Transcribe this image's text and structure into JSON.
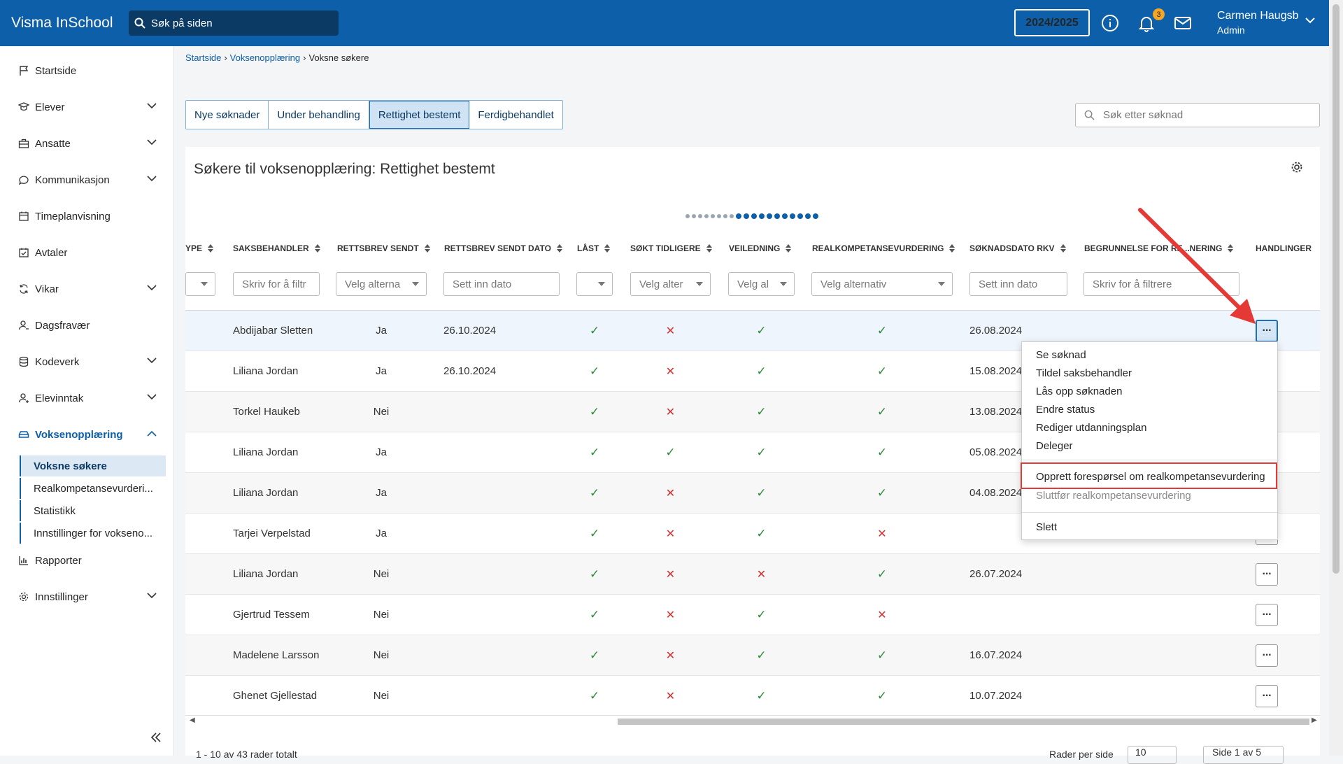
{
  "topbar": {
    "brand": "Visma InSchool",
    "search_placeholder": "Søk på siden",
    "year": "2024/2025",
    "notification_count": "3",
    "user_name": "Carmen Haugsb",
    "user_role": "Admin",
    "icons": [
      "info-icon",
      "bell-icon",
      "mail-icon"
    ]
  },
  "sidebar": {
    "items": [
      {
        "label": "Startside",
        "icon": "flag-icon"
      },
      {
        "label": "Elever",
        "icon": "student-icon"
      },
      {
        "label": "Ansatte",
        "icon": "briefcase-icon"
      },
      {
        "label": "Kommunikasjon",
        "icon": "chat-icon"
      },
      {
        "label": "Timeplanvisning",
        "icon": "calendar-icon"
      },
      {
        "label": "Avtaler",
        "icon": "calendar-check-icon"
      },
      {
        "label": "Vikar",
        "icon": "swap-icon"
      },
      {
        "label": "Dagsfravær",
        "icon": "user-absent-icon"
      },
      {
        "label": "Kodeverk",
        "icon": "database-icon"
      },
      {
        "label": "Elevinntak",
        "icon": "user-plus-icon"
      },
      {
        "label": "Voksenopplæring",
        "icon": "car-icon"
      },
      {
        "label": "Rapporter",
        "icon": "chart-icon"
      },
      {
        "label": "Innstillinger",
        "icon": "gear-icon"
      }
    ],
    "subitems": [
      "Voksne søkere",
      "Realkompetansevurderi...",
      "Statistikk",
      "Innstillinger for vokseno..."
    ]
  },
  "breadcrumb": {
    "items": [
      "Startside",
      "Voksenopplæring"
    ],
    "current": "Voksne søkere"
  },
  "tabs": [
    "Nye søknader",
    "Under behandling",
    "Rettighet bestemt",
    "Ferdigbehandlet"
  ],
  "search_placeholder": "Søk etter søknad",
  "card_title": "Søkere til voksenopplæring: Rettighet bestemt",
  "columns": {
    "type": "YPE",
    "saksbehandler": "SAKSBEHANDLER",
    "rettsbrev": "RETTSBREV SENDT",
    "rettsbrev_dato": "RETTSBREV SENDT DATO",
    "last": "LÅST",
    "sokt": "SØKT TIDLIGERE",
    "veiledning": "VEILEDNING",
    "rkv": "REALKOMPETANSEVURDERING",
    "soknadsdato": "SØKNADSDATO RKV",
    "begrunnelse": "BEGRUNNELSE FOR RE...NERING",
    "handlinger": "HANDLINGER"
  },
  "filters": {
    "saksbehandler": "Skriv for å filtr",
    "rettsbrev": "Velg alterna",
    "rettsbrev_dato": "Sett inn dato",
    "sokt": "Velg alter",
    "veiledning": "Velg al",
    "rkv": "Velg alternativ",
    "soknadsdato": "Sett inn dato",
    "begrunnelse": "Skriv for å filtrere"
  },
  "rows": [
    {
      "name": "Abdijabar Sletten",
      "sendt": "Ja",
      "dato": "26.10.2024",
      "last": "check",
      "sokt": "cross",
      "veil": "check",
      "rkv": "check",
      "soknad": "26.08.2024"
    },
    {
      "name": "Liliana Jordan",
      "sendt": "Ja",
      "dato": "26.10.2024",
      "last": "check",
      "sokt": "cross",
      "veil": "check",
      "rkv": "check",
      "soknad": "15.08.2024"
    },
    {
      "name": "Torkel Haukeb",
      "sendt": "Nei",
      "dato": "",
      "last": "check",
      "sokt": "cross",
      "veil": "check",
      "rkv": "check",
      "soknad": "13.08.2024"
    },
    {
      "name": "Liliana Jordan",
      "sendt": "Ja",
      "dato": "",
      "last": "check",
      "sokt": "check",
      "veil": "check",
      "rkv": "check",
      "soknad": "05.08.2024"
    },
    {
      "name": "Liliana Jordan",
      "sendt": "Ja",
      "dato": "",
      "last": "check",
      "sokt": "cross",
      "veil": "check",
      "rkv": "check",
      "soknad": "04.08.2024"
    },
    {
      "name": "Tarjei Verpelstad",
      "sendt": "Ja",
      "dato": "",
      "last": "check",
      "sokt": "cross",
      "veil": "check",
      "rkv": "cross",
      "soknad": ""
    },
    {
      "name": "Liliana Jordan",
      "sendt": "Nei",
      "dato": "",
      "last": "check",
      "sokt": "cross",
      "veil": "cross",
      "rkv": "check",
      "soknad": "26.07.2024"
    },
    {
      "name": "Gjertrud Tessem",
      "sendt": "Nei",
      "dato": "",
      "last": "check",
      "sokt": "cross",
      "veil": "check",
      "rkv": "cross",
      "soknad": ""
    },
    {
      "name": "Madelene Larsson",
      "sendt": "Nei",
      "dato": "",
      "last": "check",
      "sokt": "cross",
      "veil": "check",
      "rkv": "check",
      "soknad": "16.07.2024"
    },
    {
      "name": "Ghenet Gjellestad",
      "sendt": "Nei",
      "dato": "",
      "last": "check",
      "sokt": "cross",
      "veil": "check",
      "rkv": "check",
      "soknad": "10.07.2024"
    }
  ],
  "menu": {
    "items": [
      "Se søknad",
      "Tildel saksbehandler",
      "Lås opp søknaden",
      "Endre status",
      "Rediger utdanningsplan",
      "Deleger"
    ],
    "highlighted": "Opprett forespørsel om realkompetansevurdering",
    "disabled": "Sluttfør realkompetansevurdering",
    "danger": "Slett"
  },
  "footer": {
    "total": "1 - 10 av 43 rader totalt",
    "rows_label": "Rader per side",
    "rows_value": "10",
    "page": "Side 1 av 5"
  },
  "colors": {
    "brand": "#0c5fa8",
    "check": "#2e8b3a",
    "cross": "#d32f2f",
    "annotation": "#e53935"
  }
}
